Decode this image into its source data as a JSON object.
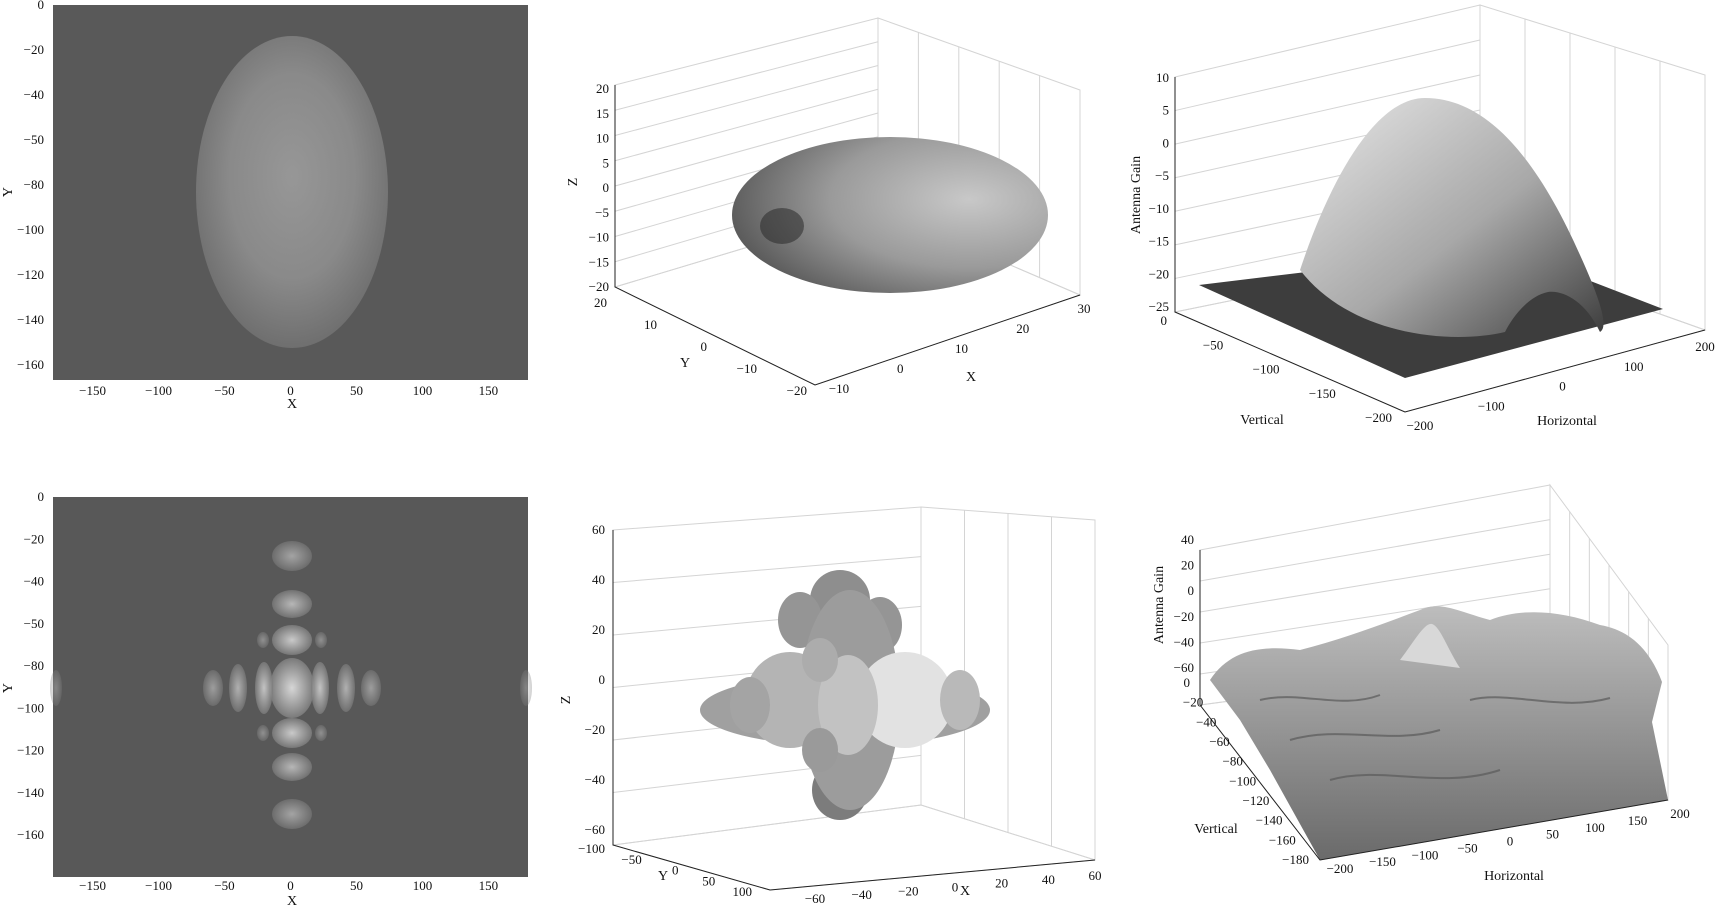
{
  "chart_data": [
    {
      "type": "heatmap",
      "xlabel": "X",
      "ylabel": "Y",
      "xticks": [
        -150,
        -100,
        -50,
        0,
        50,
        100,
        150
      ],
      "yticks": [
        0,
        -20,
        -40,
        -50,
        -80,
        -100,
        -120,
        -140,
        -160
      ],
      "xlim": [
        -180,
        180
      ],
      "pattern": "single-ellipse",
      "colors": {
        "background": "#595959",
        "peak": "#9a9a9a"
      }
    },
    {
      "type": "surface",
      "xlabel": "X",
      "ylabel": "Y",
      "zlabel": "Z",
      "xticks": [
        -10,
        0,
        10,
        20,
        30
      ],
      "yticks": [
        20,
        10,
        0,
        -10,
        -20
      ],
      "zticks": [
        20,
        15,
        10,
        5,
        0,
        -5,
        -10,
        -15,
        -20
      ]
    },
    {
      "type": "surface",
      "xlabel": "Horizontal",
      "ylabel": "Vertical",
      "zlabel": "Antenna Gain",
      "xticks": [
        -200,
        -100,
        0,
        100,
        200
      ],
      "yticks": [
        0,
        -50,
        -100,
        -150,
        -200
      ],
      "zticks": [
        10,
        5,
        0,
        -5,
        -10,
        -15,
        -20,
        -25
      ]
    },
    {
      "type": "heatmap",
      "xlabel": "X",
      "ylabel": "Y",
      "xticks": [
        -150,
        -100,
        -50,
        0,
        50,
        100,
        150
      ],
      "yticks": [
        0,
        -20,
        -40,
        -50,
        -80,
        -100,
        -120,
        -140,
        -160
      ],
      "xlim": [
        -180,
        180
      ],
      "pattern": "cross-lobes",
      "colors": {
        "background": "#585858",
        "peak": "#d6d6d6"
      }
    },
    {
      "type": "surface",
      "xlabel": "X",
      "ylabel": "Y",
      "zlabel": "Z",
      "xticks": [
        -60,
        -40,
        -20,
        0,
        20,
        40,
        60
      ],
      "yticks": [
        -100,
        -50,
        0,
        50,
        100
      ],
      "zticks": [
        60,
        40,
        20,
        0,
        -20,
        -40,
        -60
      ]
    },
    {
      "type": "surface",
      "xlabel": "Horizontal",
      "ylabel": "Vertical",
      "zlabel": "Antenna Gain",
      "xticks": [
        -200,
        -150,
        -100,
        -50,
        0,
        50,
        100,
        150,
        200
      ],
      "yticks": [
        0,
        -20,
        -40,
        -60,
        -80,
        -100,
        -120,
        -140,
        -160,
        -180
      ],
      "zticks": [
        40,
        20,
        0,
        -20,
        -40,
        -60
      ]
    }
  ]
}
